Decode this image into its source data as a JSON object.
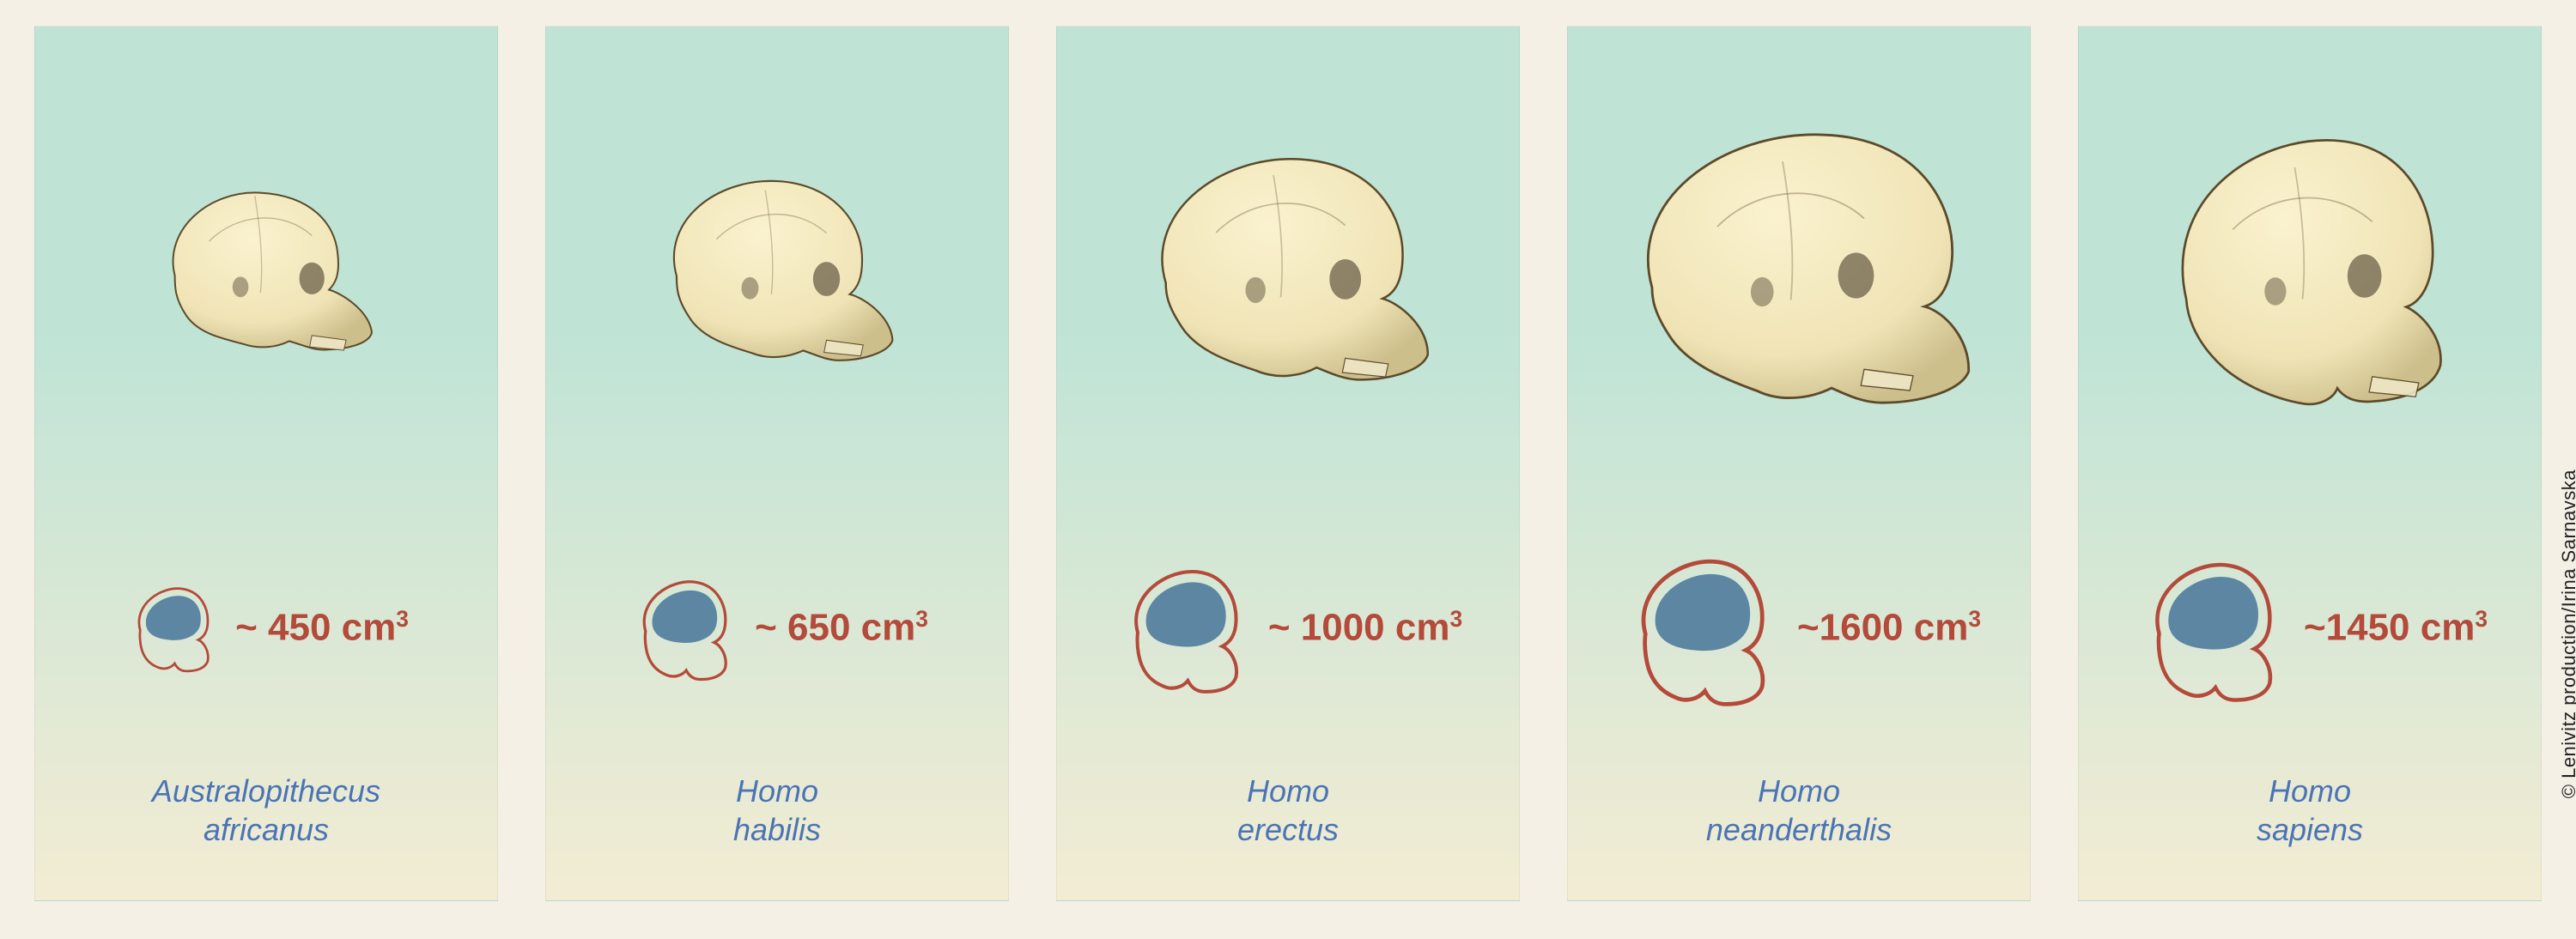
{
  "credit": "© Lenivitz production/Irina Sarnavska",
  "colors": {
    "panel_bg_top": "#bfe4d6",
    "panel_bg_bottom": "#f3ecd4",
    "skull_fill": "#f0e4b6",
    "skull_stroke": "#5c4a2a",
    "brain_fill": "#5d86a3",
    "brain_outline": "#b34a3a",
    "volume_text": "#b34a3a",
    "species_text": "#4a74b5",
    "page_bg": "#f4f0e6"
  },
  "panels": [
    {
      "species_line1": "Australopithecus",
      "species_line2": "africanus",
      "volume_text": "~ 450 cm",
      "volume_exp": "3",
      "brain_scale": 0.55,
      "skull_scale": 0.7,
      "skull_variant": 0
    },
    {
      "species_line1": "Homo",
      "species_line2": "habilis",
      "volume_text": "~ 650 cm",
      "volume_exp": "3",
      "brain_scale": 0.65,
      "skull_scale": 0.75,
      "skull_variant": 1
    },
    {
      "species_line1": "Homo",
      "species_line2": "erectus",
      "volume_text": "~ 1000 cm",
      "volume_exp": "3",
      "brain_scale": 0.8,
      "skull_scale": 0.88,
      "skull_variant": 2
    },
    {
      "species_line1": "Homo",
      "species_line2": "neanderthalis",
      "volume_text": "~1600 cm",
      "volume_exp": "3",
      "brain_scale": 0.95,
      "skull_scale": 1.0,
      "skull_variant": 3
    },
    {
      "species_line1": "Homo",
      "species_line2": "sapiens",
      "volume_text": "~1450 cm",
      "volume_exp": "3",
      "brain_scale": 0.9,
      "skull_scale": 0.95,
      "skull_variant": 4
    }
  ]
}
